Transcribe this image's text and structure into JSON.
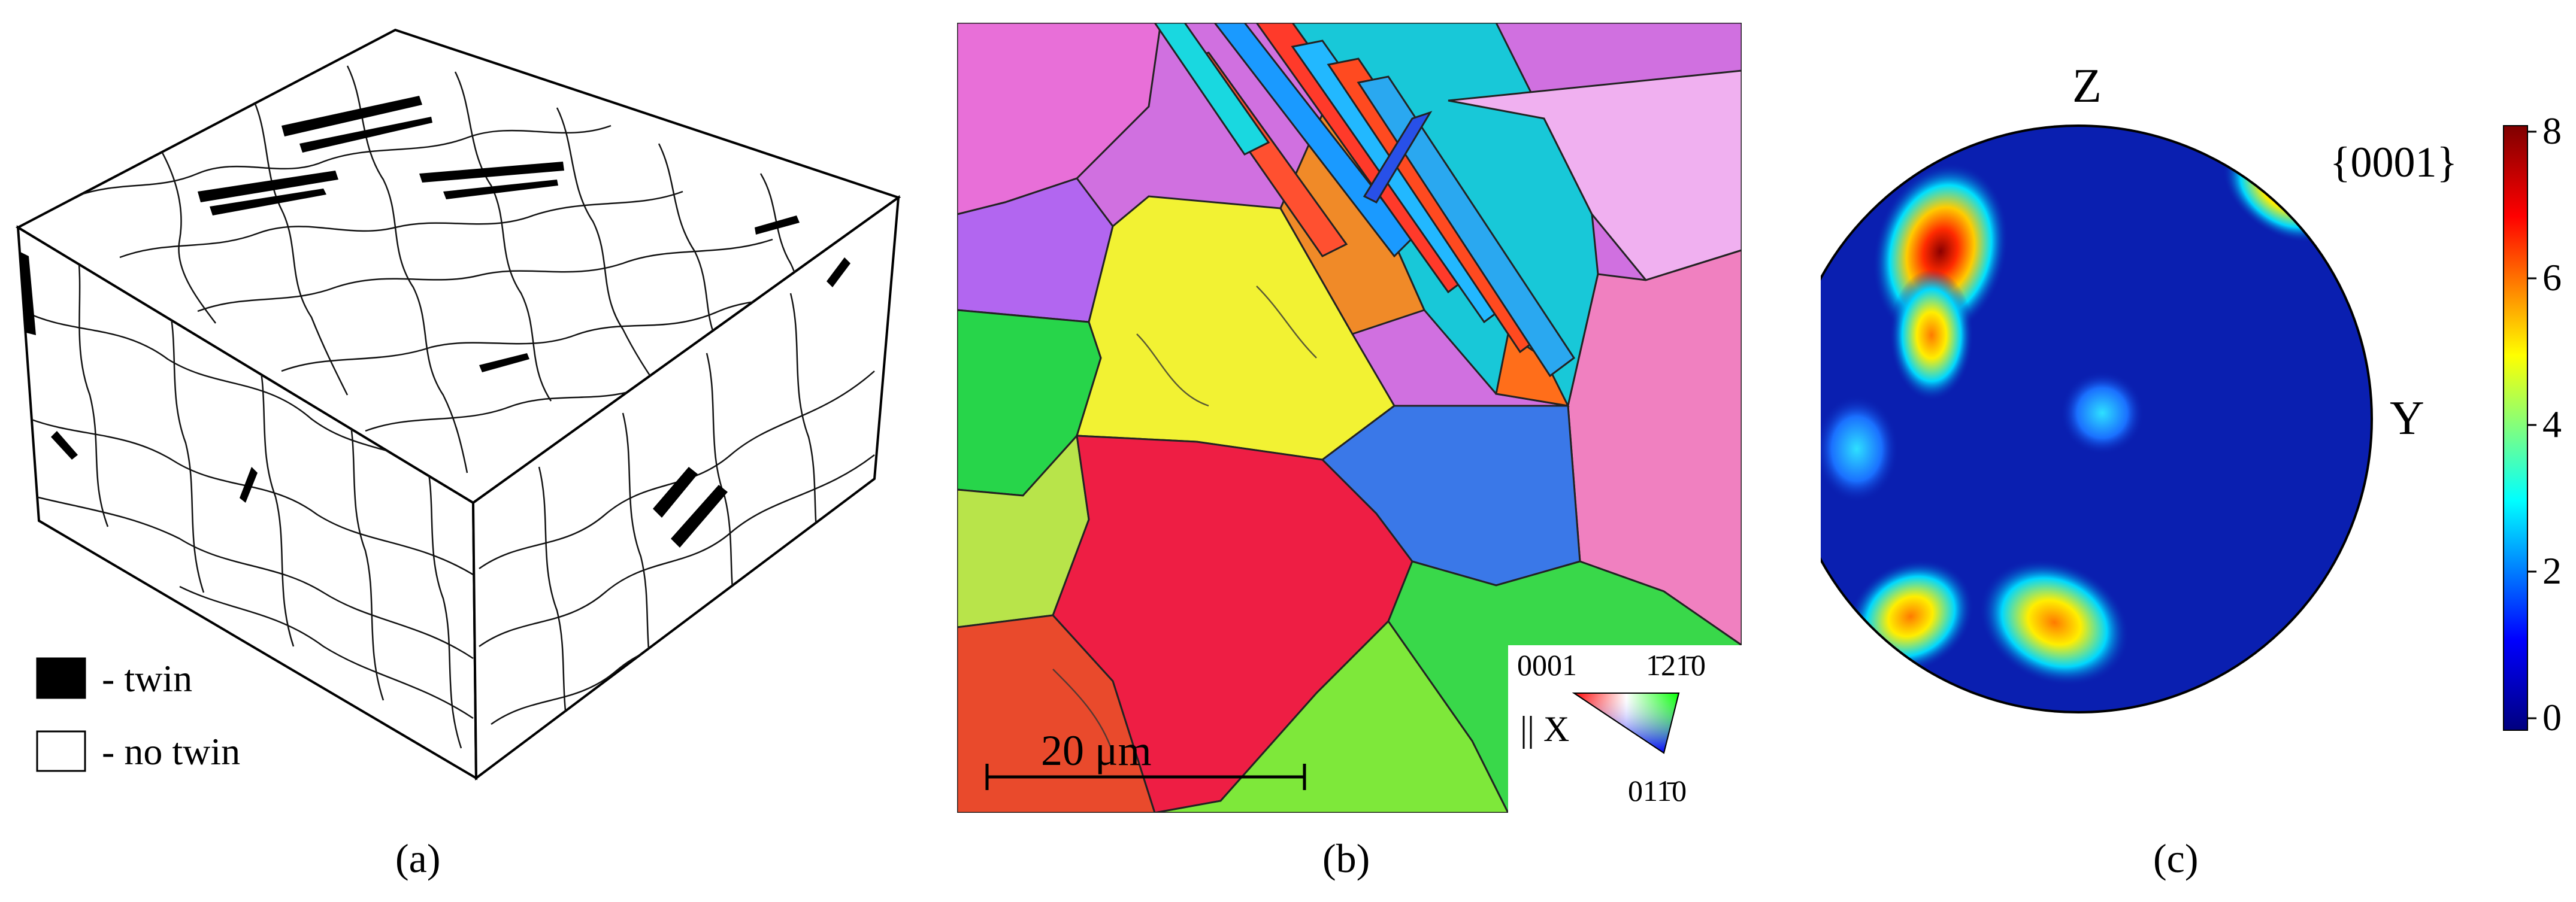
{
  "panels": [
    {
      "id": "a",
      "label": "(a)",
      "legend": [
        {
          "swatch_color": "#000000",
          "text": "- twin"
        },
        {
          "swatch_color": "#ffffff",
          "text": "- no twin"
        }
      ]
    },
    {
      "id": "b",
      "label": "(b)",
      "scale_bar": "20 μm",
      "ipf_key": {
        "corner_top_left": "0001",
        "corner_top_right": "1̄21̄0",
        "corner_bottom": "011̄0",
        "axis": "|| X"
      }
    },
    {
      "id": "c",
      "label": "(c)",
      "axis_top": "Z",
      "axis_right": "Y",
      "plane": "{0001}",
      "colorbar_ticks": [
        "0",
        "2",
        "4",
        "6",
        "8"
      ]
    }
  ],
  "colors": {
    "grain_boundary": "#111111",
    "twin": "#000000",
    "pf_background": "#0a1fb0",
    "colorbar": [
      "#00007f",
      "#0000ff",
      "#00ffff",
      "#ffff00",
      "#ff0000",
      "#7f0000"
    ]
  }
}
